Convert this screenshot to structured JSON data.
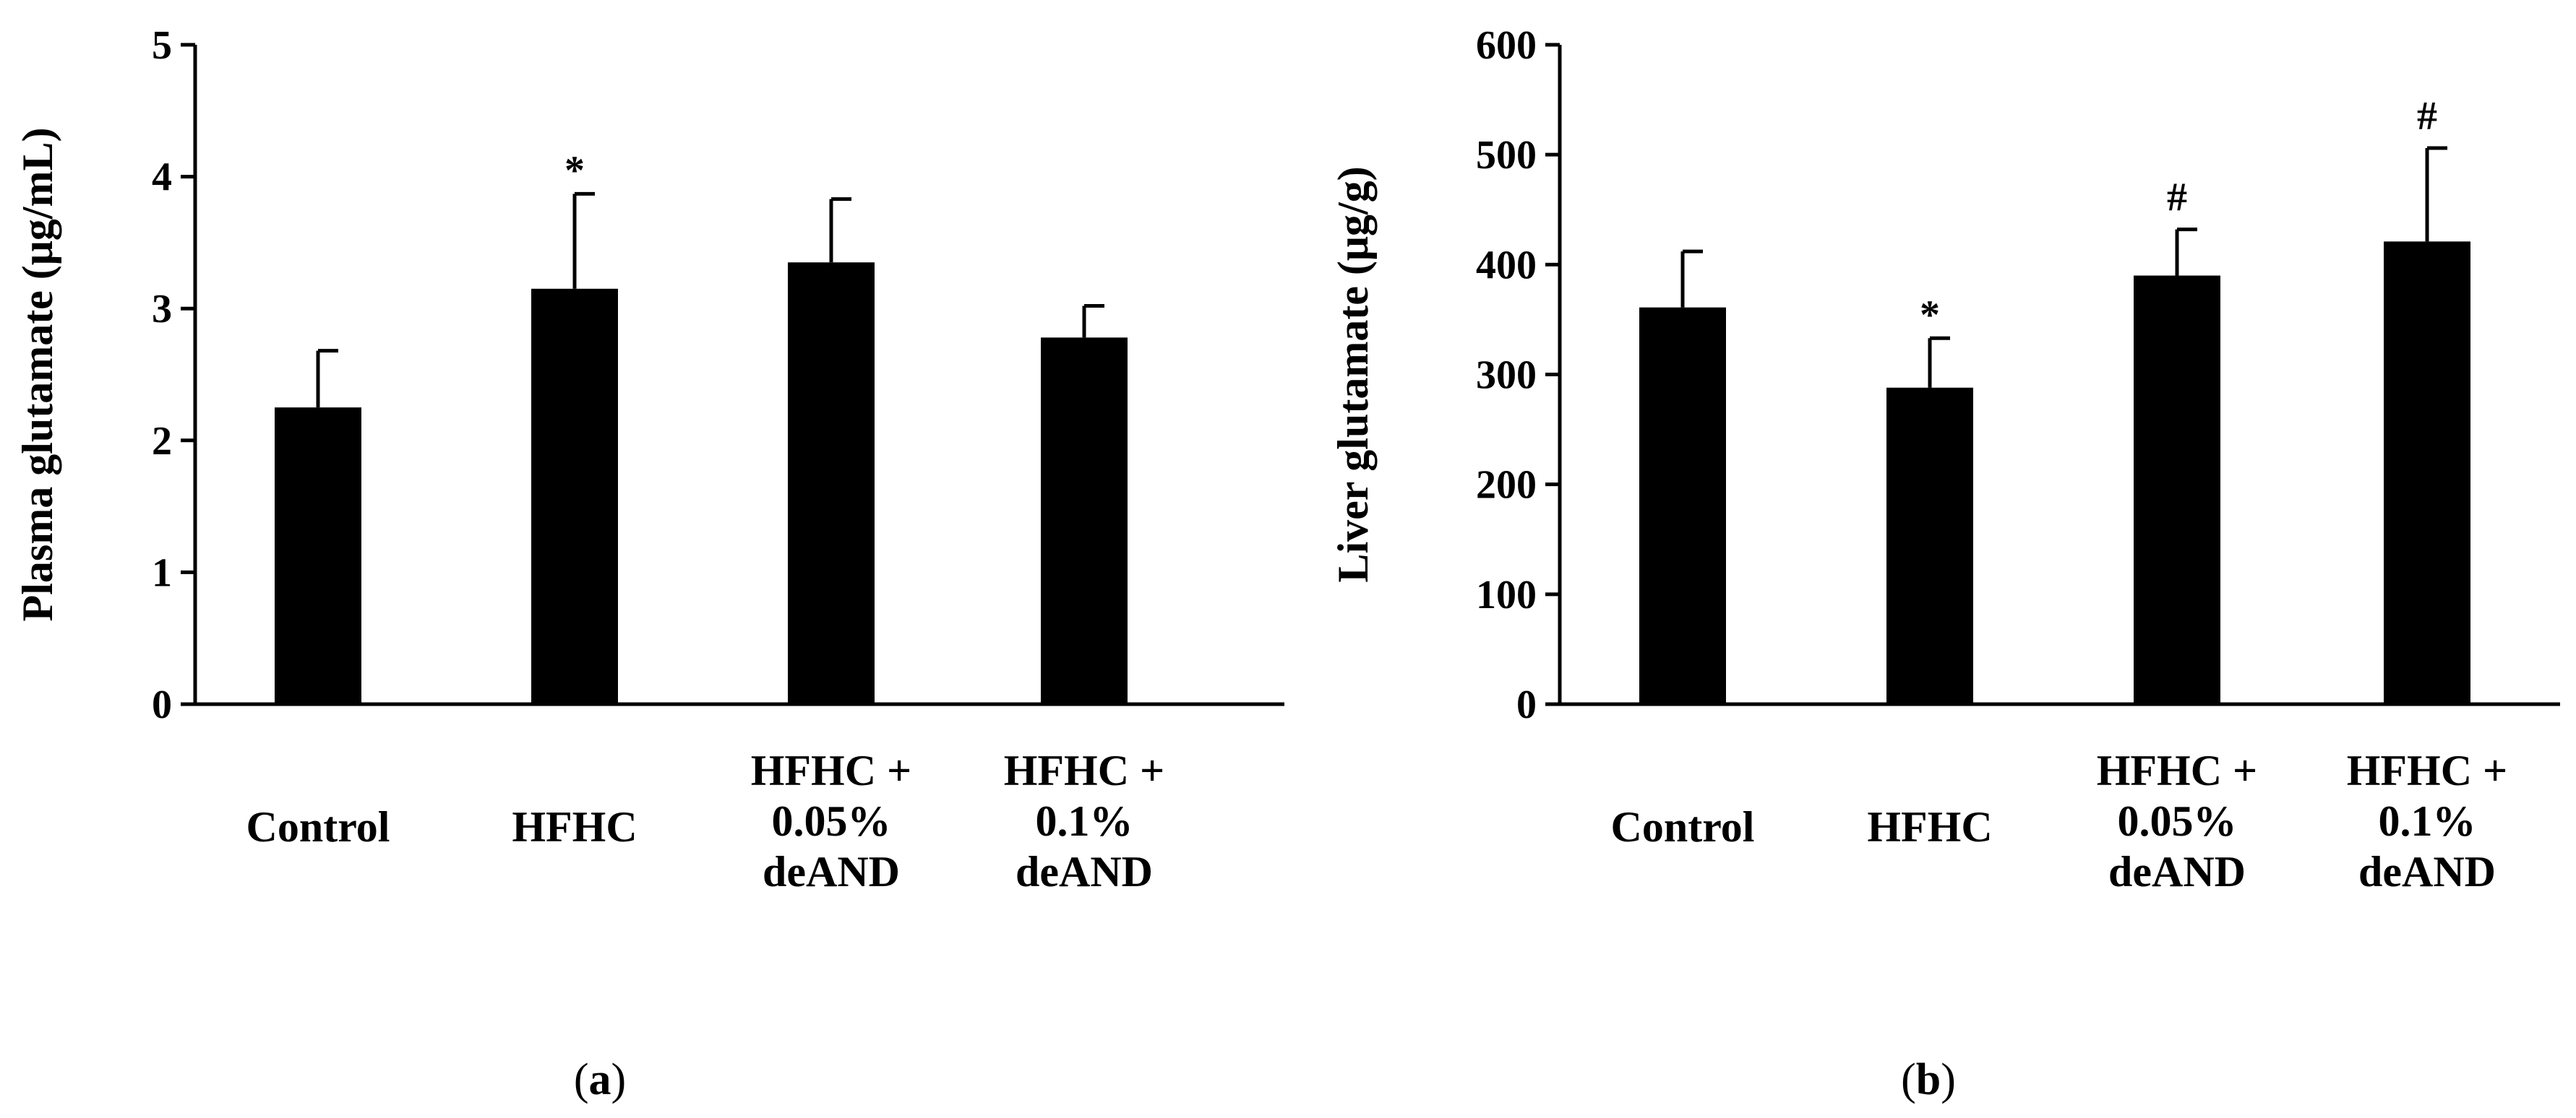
{
  "chart_data": [
    {
      "panel": "(a)",
      "type": "bar",
      "title": "",
      "xlabel": "",
      "ylabel": "Plasma glutamate (μg/mL)",
      "ylim": [
        0,
        5
      ],
      "yticks": [
        0,
        1,
        2,
        3,
        4,
        5
      ],
      "grid": false,
      "categories": [
        [
          "Control"
        ],
        [
          "HFHC"
        ],
        [
          "HFHC +",
          "0.05%",
          "deAND"
        ],
        [
          "HFHC +",
          "0.1%",
          "deAND"
        ]
      ],
      "values": [
        2.25,
        3.15,
        3.35,
        2.78
      ],
      "errors": [
        0.43,
        0.72,
        0.48,
        0.24
      ],
      "annotations": [
        "",
        "*",
        "",
        ""
      ],
      "bar_color": "#000000"
    },
    {
      "panel": "(b)",
      "type": "bar",
      "title": "",
      "xlabel": "",
      "ylabel": "Liver glutamate (μg/g)",
      "ylim": [
        0,
        600
      ],
      "yticks": [
        0,
        100,
        200,
        300,
        400,
        500,
        600
      ],
      "grid": false,
      "categories": [
        [
          "Control"
        ],
        [
          "HFHC"
        ],
        [
          "HFHC +",
          "0.05%",
          "deAND"
        ],
        [
          "HFHC +",
          "0.1%",
          "deAND"
        ]
      ],
      "values": [
        361,
        288,
        390,
        421
      ],
      "errors": [
        51,
        45,
        42,
        85
      ],
      "annotations": [
        "",
        "*",
        "#",
        "#"
      ],
      "bar_color": "#000000"
    }
  ]
}
